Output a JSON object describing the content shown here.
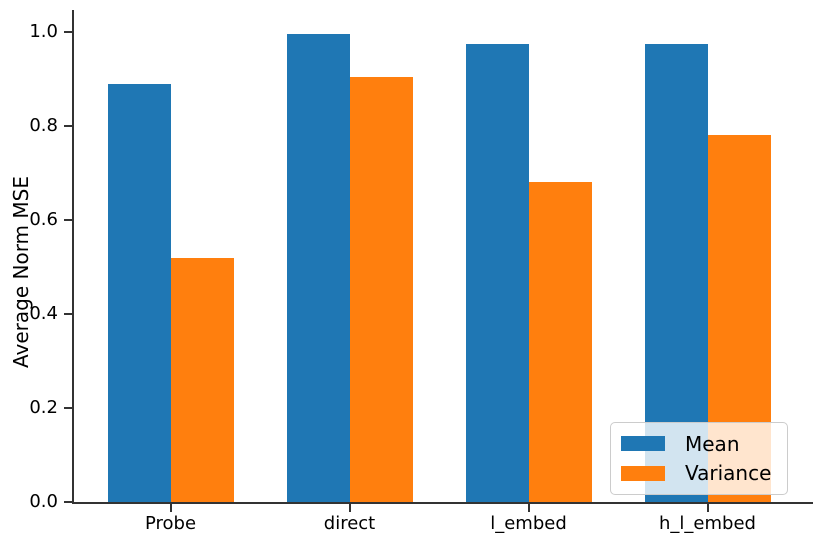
{
  "figure": {
    "background": "#ffffff",
    "axis_color": "#333333",
    "text_color": "#000000"
  },
  "chart_data": {
    "type": "bar",
    "title": "",
    "xlabel": "",
    "ylabel": "Average Norm MSE",
    "categories": [
      "Probe",
      "direct",
      "l_embed",
      "h_l_embed"
    ],
    "series": [
      {
        "name": "Mean",
        "color": "#1f77b4",
        "values": [
          0.89,
          0.995,
          0.975,
          0.975
        ]
      },
      {
        "name": "Variance",
        "color": "#ff7f0e",
        "values": [
          0.52,
          0.905,
          0.68,
          0.78
        ]
      }
    ],
    "ylim": [
      0.0,
      1.0
    ],
    "ytick_labels": [
      "0.0",
      "0.2",
      "0.4",
      "0.6",
      "0.8",
      "1.0"
    ],
    "ytick_values": [
      0.0,
      0.2,
      0.4,
      0.6,
      0.8,
      1.0
    ],
    "grid": false,
    "legend": {
      "position": "lower right",
      "entries": [
        "Mean",
        "Variance"
      ]
    }
  }
}
